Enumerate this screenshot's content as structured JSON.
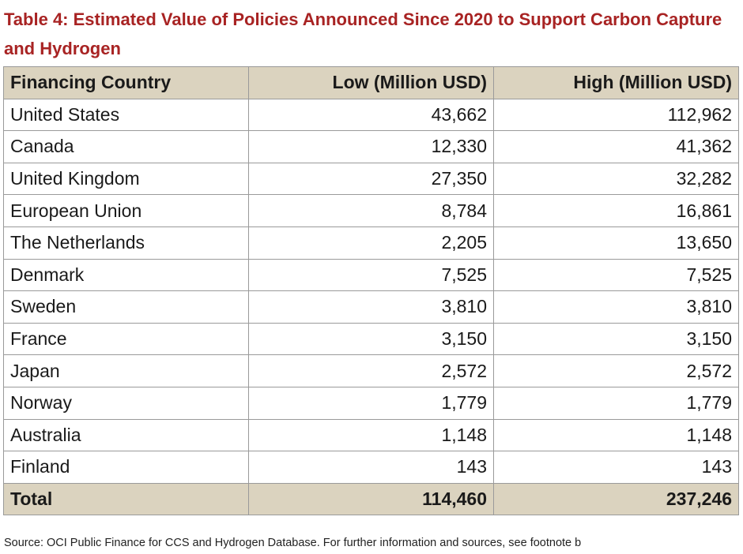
{
  "title": "Table 4: Estimated Value of Policies Announced Since 2020 to Support Carbon Capture and Hydrogen",
  "headers": [
    "Financing Country",
    "Low (Million USD)",
    "High (Million USD)"
  ],
  "rows": [
    [
      "United States",
      "43,662",
      "112,962"
    ],
    [
      "Canada",
      "12,330",
      "41,362"
    ],
    [
      "United Kingdom",
      "27,350",
      "32,282"
    ],
    [
      "European Union",
      "8,784",
      "16,861"
    ],
    [
      "The Netherlands",
      "2,205",
      "13,650"
    ],
    [
      "Denmark",
      "7,525",
      "7,525"
    ],
    [
      "Sweden",
      "3,810",
      "3,810"
    ],
    [
      "France",
      "3,150",
      "3,150"
    ],
    [
      "Japan",
      "2,572",
      "2,572"
    ],
    [
      "Norway",
      "1,779",
      "1,779"
    ],
    [
      "Australia",
      "1,148",
      "1,148"
    ],
    [
      "Finland",
      "143",
      "143"
    ]
  ],
  "total": [
    "Total",
    "114,460",
    "237,246"
  ],
  "source": "Source: OCI Public Finance for CCS and Hydrogen Database. For further information and sources, see footnote b",
  "colors": {
    "title": "#a82323",
    "header_bg": "#dbd3bf",
    "border": "#9a9a9a"
  }
}
